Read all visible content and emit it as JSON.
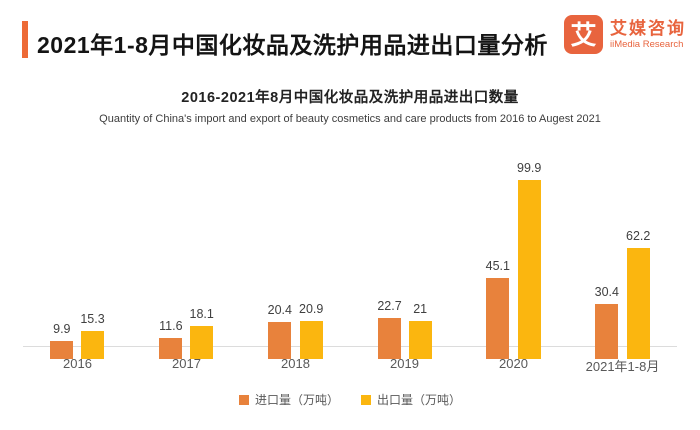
{
  "header": {
    "title": "2021年1-8月中国化妆品及洗护用品进出口量分析",
    "accent_color": "#ED6A36",
    "logo": {
      "mark_character": "艾",
      "brand_cn": "艾媒咨询",
      "brand_en": "iiMedia Research",
      "color": "#E8643E"
    }
  },
  "chart_data": {
    "type": "bar",
    "title": "2016-2021年8月中国化妆品及洗护用品进出口数量",
    "subtitle": "Quantity of China's import and export of beauty cosmetics and care products from 2016 to Augest 2021",
    "categories": [
      "2016",
      "2017",
      "2018",
      "2019",
      "2020",
      "2021年1-8月"
    ],
    "series": [
      {
        "name": "进口量（万吨）",
        "color": "#E8823C",
        "values": [
          9.9,
          11.6,
          20.4,
          22.7,
          45.1,
          30.4
        ]
      },
      {
        "name": "出口量（万吨）",
        "color": "#FBB60F",
        "values": [
          15.3,
          18.1,
          20.9,
          21,
          99.9,
          62.2
        ]
      }
    ],
    "ylim": [
      0,
      104
    ],
    "grid": false,
    "legend_position": "bottom",
    "value_labels": true,
    "axis_line_color": "#DCDCDC"
  }
}
